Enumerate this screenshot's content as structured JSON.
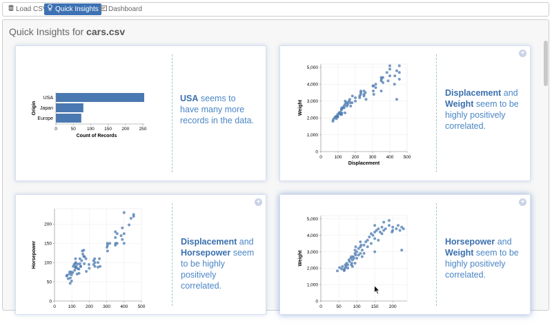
{
  "toolbar": {
    "buttons": [
      {
        "label": "Load CSV",
        "icon": "database-icon",
        "active": false
      },
      {
        "label": "Quick Insights",
        "icon": "lightbulb-icon",
        "active": true
      },
      {
        "label": "Dashboard",
        "icon": "dashboard-icon",
        "active": false
      }
    ]
  },
  "panel": {
    "title_prefix": "Quick Insights for ",
    "title_file": "cars.csv"
  },
  "colors": {
    "accent": "#3d72b4",
    "mark": "#4a78b0",
    "insight_text": "#4b86c5"
  },
  "cards": [
    {
      "insight": {
        "b1": "USA",
        "t1": " seems to have many more records in the data.",
        "b2": "",
        "t2": ""
      }
    },
    {
      "insight": {
        "b1": "Displacement",
        "t1": " and ",
        "b2": "Weight",
        "t2": " seem to be highly positively correlated."
      }
    },
    {
      "insight": {
        "b1": "Displacement",
        "t1": " and ",
        "b2": "Horsepower",
        "t2": " seem to be highly positively correlated."
      }
    },
    {
      "insight": {
        "b1": "Horsepower",
        "t1": " and ",
        "b2": "Weight",
        "t2": " seem to be highly positively correlated."
      }
    }
  ],
  "chart_data": [
    {
      "type": "bar",
      "orientation": "horizontal",
      "categories": [
        "USA",
        "Japan",
        "Europe"
      ],
      "values": [
        254,
        79,
        73
      ],
      "xlabel": "Count of Records",
      "ylabel": "Origin",
      "xlim": [
        0,
        254
      ],
      "xticks": [
        "0",
        "50",
        "100",
        "150",
        "200",
        "250"
      ]
    },
    {
      "type": "scatter",
      "xlabel": "Displacement",
      "ylabel": "Weight",
      "xlim": [
        0,
        500
      ],
      "ylim": [
        0,
        5200
      ],
      "xticks": [
        "0",
        "100",
        "200",
        "300",
        "400",
        "500"
      ],
      "yticks": [
        "0",
        "1,000",
        "2,000",
        "3,000",
        "4,000",
        "5,000"
      ],
      "points": [
        [
          70,
          1800
        ],
        [
          72,
          1900
        ],
        [
          79,
          2000
        ],
        [
          85,
          2070
        ],
        [
          90,
          2100
        ],
        [
          97,
          2200
        ],
        [
          98,
          2050
        ],
        [
          105,
          2300
        ],
        [
          108,
          2250
        ],
        [
          113,
          2350
        ],
        [
          119,
          2500
        ],
        [
          120,
          2200
        ],
        [
          121,
          2600
        ],
        [
          122,
          2300
        ],
        [
          130,
          2600
        ],
        [
          134,
          2700
        ],
        [
          135,
          2600
        ],
        [
          140,
          2800
        ],
        [
          141,
          3000
        ],
        [
          146,
          2900
        ],
        [
          151,
          2700
        ],
        [
          156,
          2800
        ],
        [
          163,
          3000
        ],
        [
          168,
          3100
        ],
        [
          171,
          2900
        ],
        [
          173,
          2700
        ],
        [
          181,
          2900
        ],
        [
          183,
          3300
        ],
        [
          200,
          3200
        ],
        [
          225,
          3300
        ],
        [
          231,
          3400
        ],
        [
          232,
          3500
        ],
        [
          250,
          3400
        ],
        [
          258,
          3500
        ],
        [
          262,
          3100
        ],
        [
          302,
          3900
        ],
        [
          304,
          3600
        ],
        [
          305,
          3900
        ],
        [
          318,
          4000
        ],
        [
          350,
          4400
        ],
        [
          351,
          4300
        ],
        [
          360,
          4400
        ],
        [
          383,
          4700
        ],
        [
          390,
          4200
        ],
        [
          400,
          4500
        ],
        [
          400,
          4900
        ],
        [
          429,
          4500
        ],
        [
          440,
          4800
        ],
        [
          455,
          4300
        ],
        [
          455,
          5100
        ],
        [
          90,
          1950
        ],
        [
          250,
          3600
        ],
        [
          318,
          3800
        ],
        [
          350,
          4200
        ],
        [
          225,
          3200
        ],
        [
          155,
          2900
        ],
        [
          116,
          2200
        ],
        [
          350,
          3600
        ],
        [
          307,
          3400
        ],
        [
          360,
          4100
        ],
        [
          427,
          4000
        ],
        [
          440,
          3100
        ],
        [
          400,
          5100
        ],
        [
          455,
          4700
        ],
        [
          120,
          2500
        ],
        [
          140,
          2300
        ],
        [
          98,
          2100
        ],
        [
          200,
          3000
        ],
        [
          250,
          3300
        ],
        [
          232,
          3600
        ]
      ]
    },
    {
      "type": "scatter",
      "xlabel": "",
      "ylabel": "Horsepower",
      "xlim": [
        0,
        500
      ],
      "ylim": [
        0,
        240
      ],
      "xticks": [
        "0",
        "100",
        "200",
        "300",
        "400",
        "500"
      ],
      "yticks": [
        "0",
        "50",
        "100",
        "150",
        "200"
      ],
      "points": [
        [
          70,
          65
        ],
        [
          72,
          67
        ],
        [
          79,
          58
        ],
        [
          85,
          70
        ],
        [
          90,
          46
        ],
        [
          97,
          75
        ],
        [
          98,
          68
        ],
        [
          105,
          74
        ],
        [
          108,
          90
        ],
        [
          113,
          95
        ],
        [
          119,
          97
        ],
        [
          120,
          88
        ],
        [
          121,
          110
        ],
        [
          122,
          86
        ],
        [
          130,
          70
        ],
        [
          134,
          96
        ],
        [
          135,
          84
        ],
        [
          140,
          83
        ],
        [
          141,
          72
        ],
        [
          146,
          97
        ],
        [
          151,
          90
        ],
        [
          156,
          105
        ],
        [
          163,
          122
        ],
        [
          168,
          116
        ],
        [
          171,
          97
        ],
        [
          173,
          115
        ],
        [
          181,
          110
        ],
        [
          183,
          77
        ],
        [
          200,
          85
        ],
        [
          225,
          105
        ],
        [
          231,
          110
        ],
        [
          232,
          100
        ],
        [
          250,
          100
        ],
        [
          258,
          110
        ],
        [
          262,
          90
        ],
        [
          302,
          140
        ],
        [
          304,
          150
        ],
        [
          305,
          145
        ],
        [
          318,
          150
        ],
        [
          350,
          165
        ],
        [
          351,
          150
        ],
        [
          360,
          175
        ],
        [
          383,
          170
        ],
        [
          390,
          190
        ],
        [
          400,
          175
        ],
        [
          400,
          150
        ],
        [
          429,
          198
        ],
        [
          440,
          215
        ],
        [
          455,
          225
        ],
        [
          455,
          220
        ],
        [
          88,
          76
        ],
        [
          116,
          80
        ],
        [
          125,
          90
        ],
        [
          146,
          110
        ],
        [
          150,
          90
        ],
        [
          160,
          130
        ],
        [
          225,
          95
        ],
        [
          250,
          88
        ],
        [
          305,
          130
        ],
        [
          350,
          180
        ],
        [
          360,
          150
        ],
        [
          390,
          160
        ],
        [
          350,
          145
        ],
        [
          400,
          230
        ],
        [
          198,
          95
        ],
        [
          232,
          90
        ],
        [
          122,
          100
        ],
        [
          91,
          60
        ],
        [
          98,
          52
        ],
        [
          168,
          132
        ]
      ]
    },
    {
      "type": "scatter",
      "xlabel": "",
      "ylabel": "Weight",
      "xlim": [
        0,
        240
      ],
      "ylim": [
        0,
        5200
      ],
      "xticks": [
        "0",
        "50",
        "100",
        "150",
        "200"
      ],
      "yticks": [
        "0",
        "1,000",
        "2,000",
        "3,000",
        "4,000",
        "5,000"
      ],
      "points": [
        [
          46,
          1835
        ],
        [
          52,
          2035
        ],
        [
          58,
          1950
        ],
        [
          60,
          2100
        ],
        [
          65,
          1900
        ],
        [
          67,
          2000
        ],
        [
          68,
          2200
        ],
        [
          70,
          2100
        ],
        [
          72,
          2300
        ],
        [
          75,
          2200
        ],
        [
          78,
          2500
        ],
        [
          80,
          2400
        ],
        [
          83,
          2600
        ],
        [
          85,
          2700
        ],
        [
          86,
          2300
        ],
        [
          88,
          2500
        ],
        [
          90,
          2700
        ],
        [
          92,
          2600
        ],
        [
          95,
          2900
        ],
        [
          97,
          2800
        ],
        [
          100,
          3000
        ],
        [
          105,
          3200
        ],
        [
          110,
          3300
        ],
        [
          110,
          2900
        ],
        [
          112,
          3400
        ],
        [
          115,
          3100
        ],
        [
          120,
          3400
        ],
        [
          125,
          3600
        ],
        [
          130,
          3700
        ],
        [
          135,
          3900
        ],
        [
          140,
          4100
        ],
        [
          145,
          4000
        ],
        [
          150,
          4200
        ],
        [
          150,
          3800
        ],
        [
          155,
          4300
        ],
        [
          160,
          4400
        ],
        [
          165,
          4200
        ],
        [
          170,
          4500
        ],
        [
          175,
          4300
        ],
        [
          180,
          4400
        ],
        [
          190,
          4600
        ],
        [
          198,
          4200
        ],
        [
          200,
          4500
        ],
        [
          210,
          4400
        ],
        [
          215,
          4600
        ],
        [
          220,
          4300
        ],
        [
          225,
          4500
        ],
        [
          230,
          4400
        ],
        [
          88,
          2100
        ],
        [
          75,
          2000
        ],
        [
          95,
          2300
        ],
        [
          100,
          2600
        ],
        [
          105,
          2800
        ],
        [
          110,
          3600
        ],
        [
          140,
          3500
        ],
        [
          150,
          4600
        ],
        [
          130,
          3300
        ],
        [
          175,
          4800
        ],
        [
          190,
          4900
        ],
        [
          225,
          3100
        ],
        [
          150,
          3000
        ],
        [
          95,
          3100
        ],
        [
          115,
          2700
        ],
        [
          85,
          2200
        ],
        [
          65,
          1850
        ],
        [
          97,
          3300
        ],
        [
          120,
          2900
        ],
        [
          170,
          4100
        ],
        [
          200,
          4300
        ],
        [
          160,
          3700
        ]
      ]
    }
  ]
}
